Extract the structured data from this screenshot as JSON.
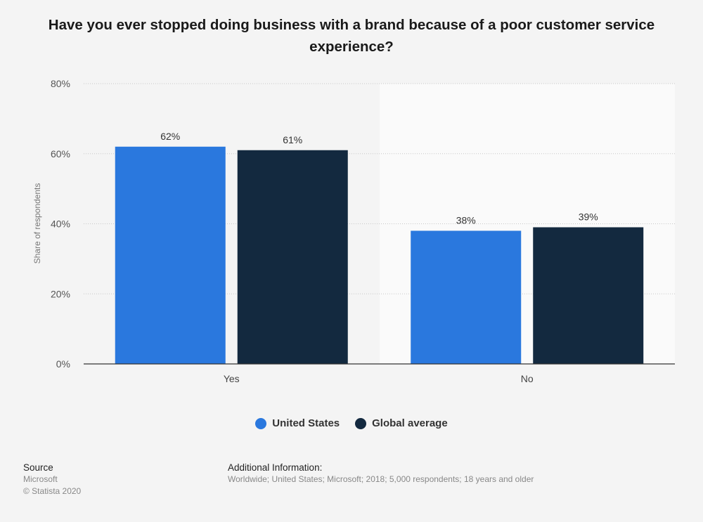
{
  "chart_data": {
    "type": "bar",
    "title": "Have you ever stopped doing business with a brand because of a poor customer service experience?",
    "xlabel": "",
    "ylabel": "Share of respondents",
    "ylim": [
      0,
      80
    ],
    "yticks": [
      0,
      20,
      40,
      60,
      80
    ],
    "ytick_labels": [
      "0%",
      "20%",
      "40%",
      "60%",
      "80%"
    ],
    "categories": [
      "Yes",
      "No"
    ],
    "series": [
      {
        "name": "United States",
        "color": "#2a78de",
        "values": [
          62,
          38
        ],
        "labels": [
          "62%",
          "38%"
        ]
      },
      {
        "name": "Global average",
        "color": "#13293f",
        "values": [
          61,
          39
        ],
        "labels": [
          "61%",
          "39%"
        ]
      }
    ],
    "grid": true,
    "legend_position": "bottom"
  },
  "footer": {
    "source_heading": "Source",
    "source_name": "Microsoft",
    "copyright": "© Statista 2020",
    "additional_heading": "Additional Information:",
    "additional_text": "Worldwide; United States; Microsoft; 2018; 5,000 respondents; 18 years and older"
  }
}
